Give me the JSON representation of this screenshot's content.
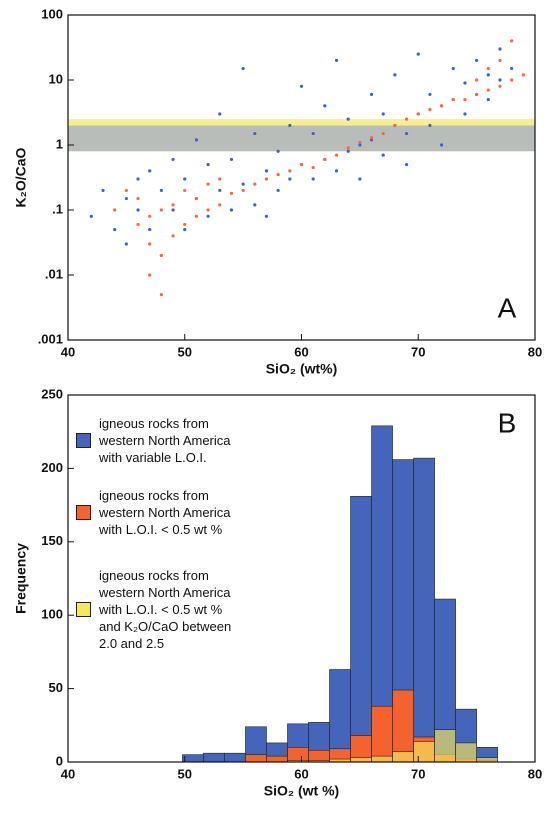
{
  "chart_data": [
    {
      "type": "scatter",
      "annotation": "A",
      "x_label": "SiO₂ (wt%)",
      "y_label": "K₂O/CaO",
      "xlim": [
        40,
        80
      ],
      "xticks": [
        40,
        50,
        60,
        70,
        80
      ],
      "ylim": [
        0.001,
        100
      ],
      "log_y": true,
      "yticks": [
        {
          "value": 0.001,
          "label": ".001"
        },
        {
          "value": 0.01,
          "label": ".01"
        },
        {
          "value": 0.1,
          "label": ".1"
        },
        1,
        10,
        100
      ],
      "bands": [
        {
          "from": 0.8,
          "to": 2.0,
          "color": "#b9bdb9"
        },
        {
          "from": 2.0,
          "to": 2.5,
          "color": "#f6ee90"
        }
      ],
      "series": [
        {
          "color": "#3f63c4",
          "x": [
            42,
            43,
            44,
            45,
            45,
            46,
            46,
            47,
            47,
            48,
            48,
            49,
            49,
            50,
            50,
            51,
            51,
            52,
            52,
            53,
            53,
            54,
            54,
            55,
            55,
            56,
            56,
            57,
            57,
            58,
            58,
            59,
            59,
            60,
            60,
            61,
            61,
            62,
            62,
            63,
            63,
            64,
            64,
            65,
            65,
            66,
            66,
            67,
            67,
            68,
            68,
            69,
            69,
            70,
            70,
            71,
            71,
            72,
            72,
            73,
            73,
            74,
            74,
            75,
            75,
            76,
            76,
            77,
            77,
            78
          ],
          "values": [
            0.08,
            0.2,
            0.05,
            0.15,
            0.03,
            0.3,
            0.1,
            0.05,
            0.4,
            0.02,
            0.2,
            0.1,
            0.6,
            0.05,
            0.3,
            0.15,
            1.2,
            0.08,
            0.5,
            0.2,
            3,
            0.1,
            0.6,
            0.25,
            15,
            0.12,
            1.5,
            0.4,
            0.08,
            0.8,
            0.2,
            2,
            0.3,
            0.5,
            8,
            0.3,
            1.5,
            0.6,
            4,
            0.4,
            20,
            0.8,
            2.5,
            1,
            0.3,
            1.2,
            6,
            0.7,
            3,
            2,
            12,
            1.5,
            0.5,
            3,
            25,
            2,
            6,
            4,
            1,
            5,
            15,
            3,
            9,
            6,
            20,
            5,
            12,
            10,
            30,
            15
          ]
        },
        {
          "color": "#f26a48",
          "x": [
            44,
            45,
            46,
            46,
            47,
            47,
            47,
            48,
            48,
            48,
            49,
            49,
            50,
            50,
            51,
            51,
            52,
            52,
            53,
            53,
            54,
            55,
            56,
            57,
            58,
            59,
            60,
            61,
            62,
            63,
            64,
            65,
            66,
            67,
            68,
            69,
            70,
            71,
            72,
            73,
            74,
            75,
            75,
            76,
            76,
            77,
            77,
            78,
            78,
            79
          ],
          "values": [
            0.1,
            0.2,
            0.06,
            0.15,
            0.01,
            0.03,
            0.08,
            0.005,
            0.02,
            0.1,
            0.04,
            0.12,
            0.06,
            0.2,
            0.08,
            0.15,
            0.1,
            0.25,
            0.12,
            0.3,
            0.18,
            0.2,
            0.25,
            0.3,
            0.35,
            0.4,
            0.5,
            0.45,
            0.6,
            0.7,
            0.9,
            1.1,
            1.3,
            1.5,
            2,
            2.5,
            3,
            3.5,
            4,
            5,
            5,
            6,
            10,
            7,
            15,
            8,
            20,
            10,
            40,
            12
          ]
        }
      ]
    },
    {
      "type": "histogram",
      "annotation": "B",
      "x_label": "SiO₂ (wt %)",
      "y_label": "Frequency",
      "xlim": [
        40,
        80
      ],
      "xticks": [
        40,
        50,
        60,
        70,
        80
      ],
      "ylim": [
        0,
        250
      ],
      "yticks": [
        0,
        50,
        100,
        150,
        200,
        250
      ],
      "legend": "upper-left",
      "bins": [
        49.8,
        51.6,
        53.4,
        55.2,
        57,
        58.8,
        60.6,
        62.4,
        64.2,
        66,
        67.8,
        69.6,
        71.4,
        73.2,
        75,
        76.8
      ],
      "series": [
        {
          "name": "igneous rocks from\nwestern North America\nwith variable L.O.I.",
          "color": "#4465b9",
          "values": [
            5,
            6,
            6,
            24,
            13,
            26,
            27,
            63,
            181,
            229,
            206,
            207,
            111,
            36,
            10
          ]
        },
        {
          "name": "igneous rocks from\nwestern North America\nwith L.O.I. < 0.5 wt %",
          "color": "#f4622e",
          "values": [
            0,
            0,
            0,
            5,
            4,
            10,
            8,
            9,
            18,
            38,
            49,
            17,
            5,
            2,
            1
          ]
        },
        {
          "name": "igneous rocks from\nwestern North America\nwith L.O.I. < 0.5 wt %\nand K₂O/CaO between\n2.0 and 2.5",
          "color": "#f7e85a",
          "values": [
            0,
            0,
            0,
            0,
            0,
            1,
            1,
            2,
            3,
            4,
            7,
            14,
            22,
            13,
            3
          ]
        }
      ]
    }
  ]
}
